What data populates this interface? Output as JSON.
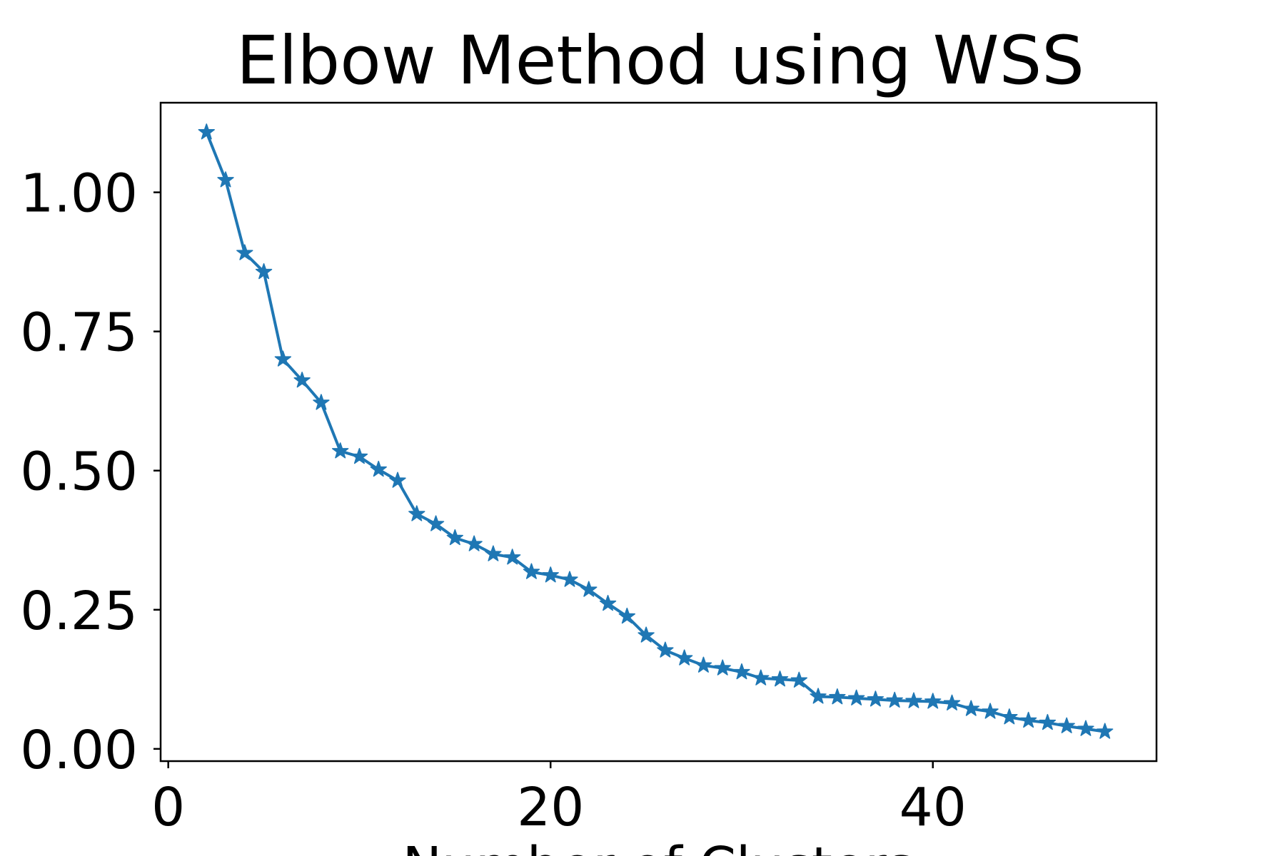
{
  "chart_data": {
    "type": "line",
    "title": "Elbow Method using WSS",
    "xlabel": "Number of Clusters",
    "ylabel": "",
    "xlim": [
      -0.4,
      51.7
    ],
    "ylim": [
      -0.022,
      1.161
    ],
    "xticks": [
      0,
      20,
      40
    ],
    "xtick_labels": [
      "0",
      "20",
      "40"
    ],
    "yticks": [
      0.0,
      0.25,
      0.5,
      0.75,
      1.0
    ],
    "ytick_labels": [
      "0.00",
      "0.25",
      "0.50",
      "0.75",
      "1.00"
    ],
    "grid": false,
    "marker": "star",
    "color": "#1f77b4",
    "series": [
      {
        "x": [
          2,
          3,
          4,
          5,
          6,
          7,
          8,
          9,
          10,
          11,
          12,
          13,
          14,
          15,
          16,
          17,
          18,
          19,
          20,
          21,
          22,
          23,
          24,
          25,
          26,
          27,
          28,
          29,
          30,
          31,
          32,
          33,
          34,
          35,
          36,
          37,
          38,
          39,
          40,
          41,
          42,
          43,
          44,
          45,
          46,
          47,
          48,
          49
        ],
        "y": [
          1.108,
          1.022,
          0.891,
          0.857,
          0.7,
          0.662,
          0.622,
          0.535,
          0.525,
          0.502,
          0.482,
          0.422,
          0.404,
          0.379,
          0.368,
          0.35,
          0.344,
          0.318,
          0.312,
          0.304,
          0.286,
          0.261,
          0.238,
          0.204,
          0.177,
          0.163,
          0.15,
          0.145,
          0.138,
          0.127,
          0.125,
          0.123,
          0.094,
          0.093,
          0.091,
          0.089,
          0.087,
          0.086,
          0.085,
          0.082,
          0.072,
          0.067,
          0.057,
          0.051,
          0.047,
          0.041,
          0.036,
          0.031
        ]
      }
    ]
  }
}
